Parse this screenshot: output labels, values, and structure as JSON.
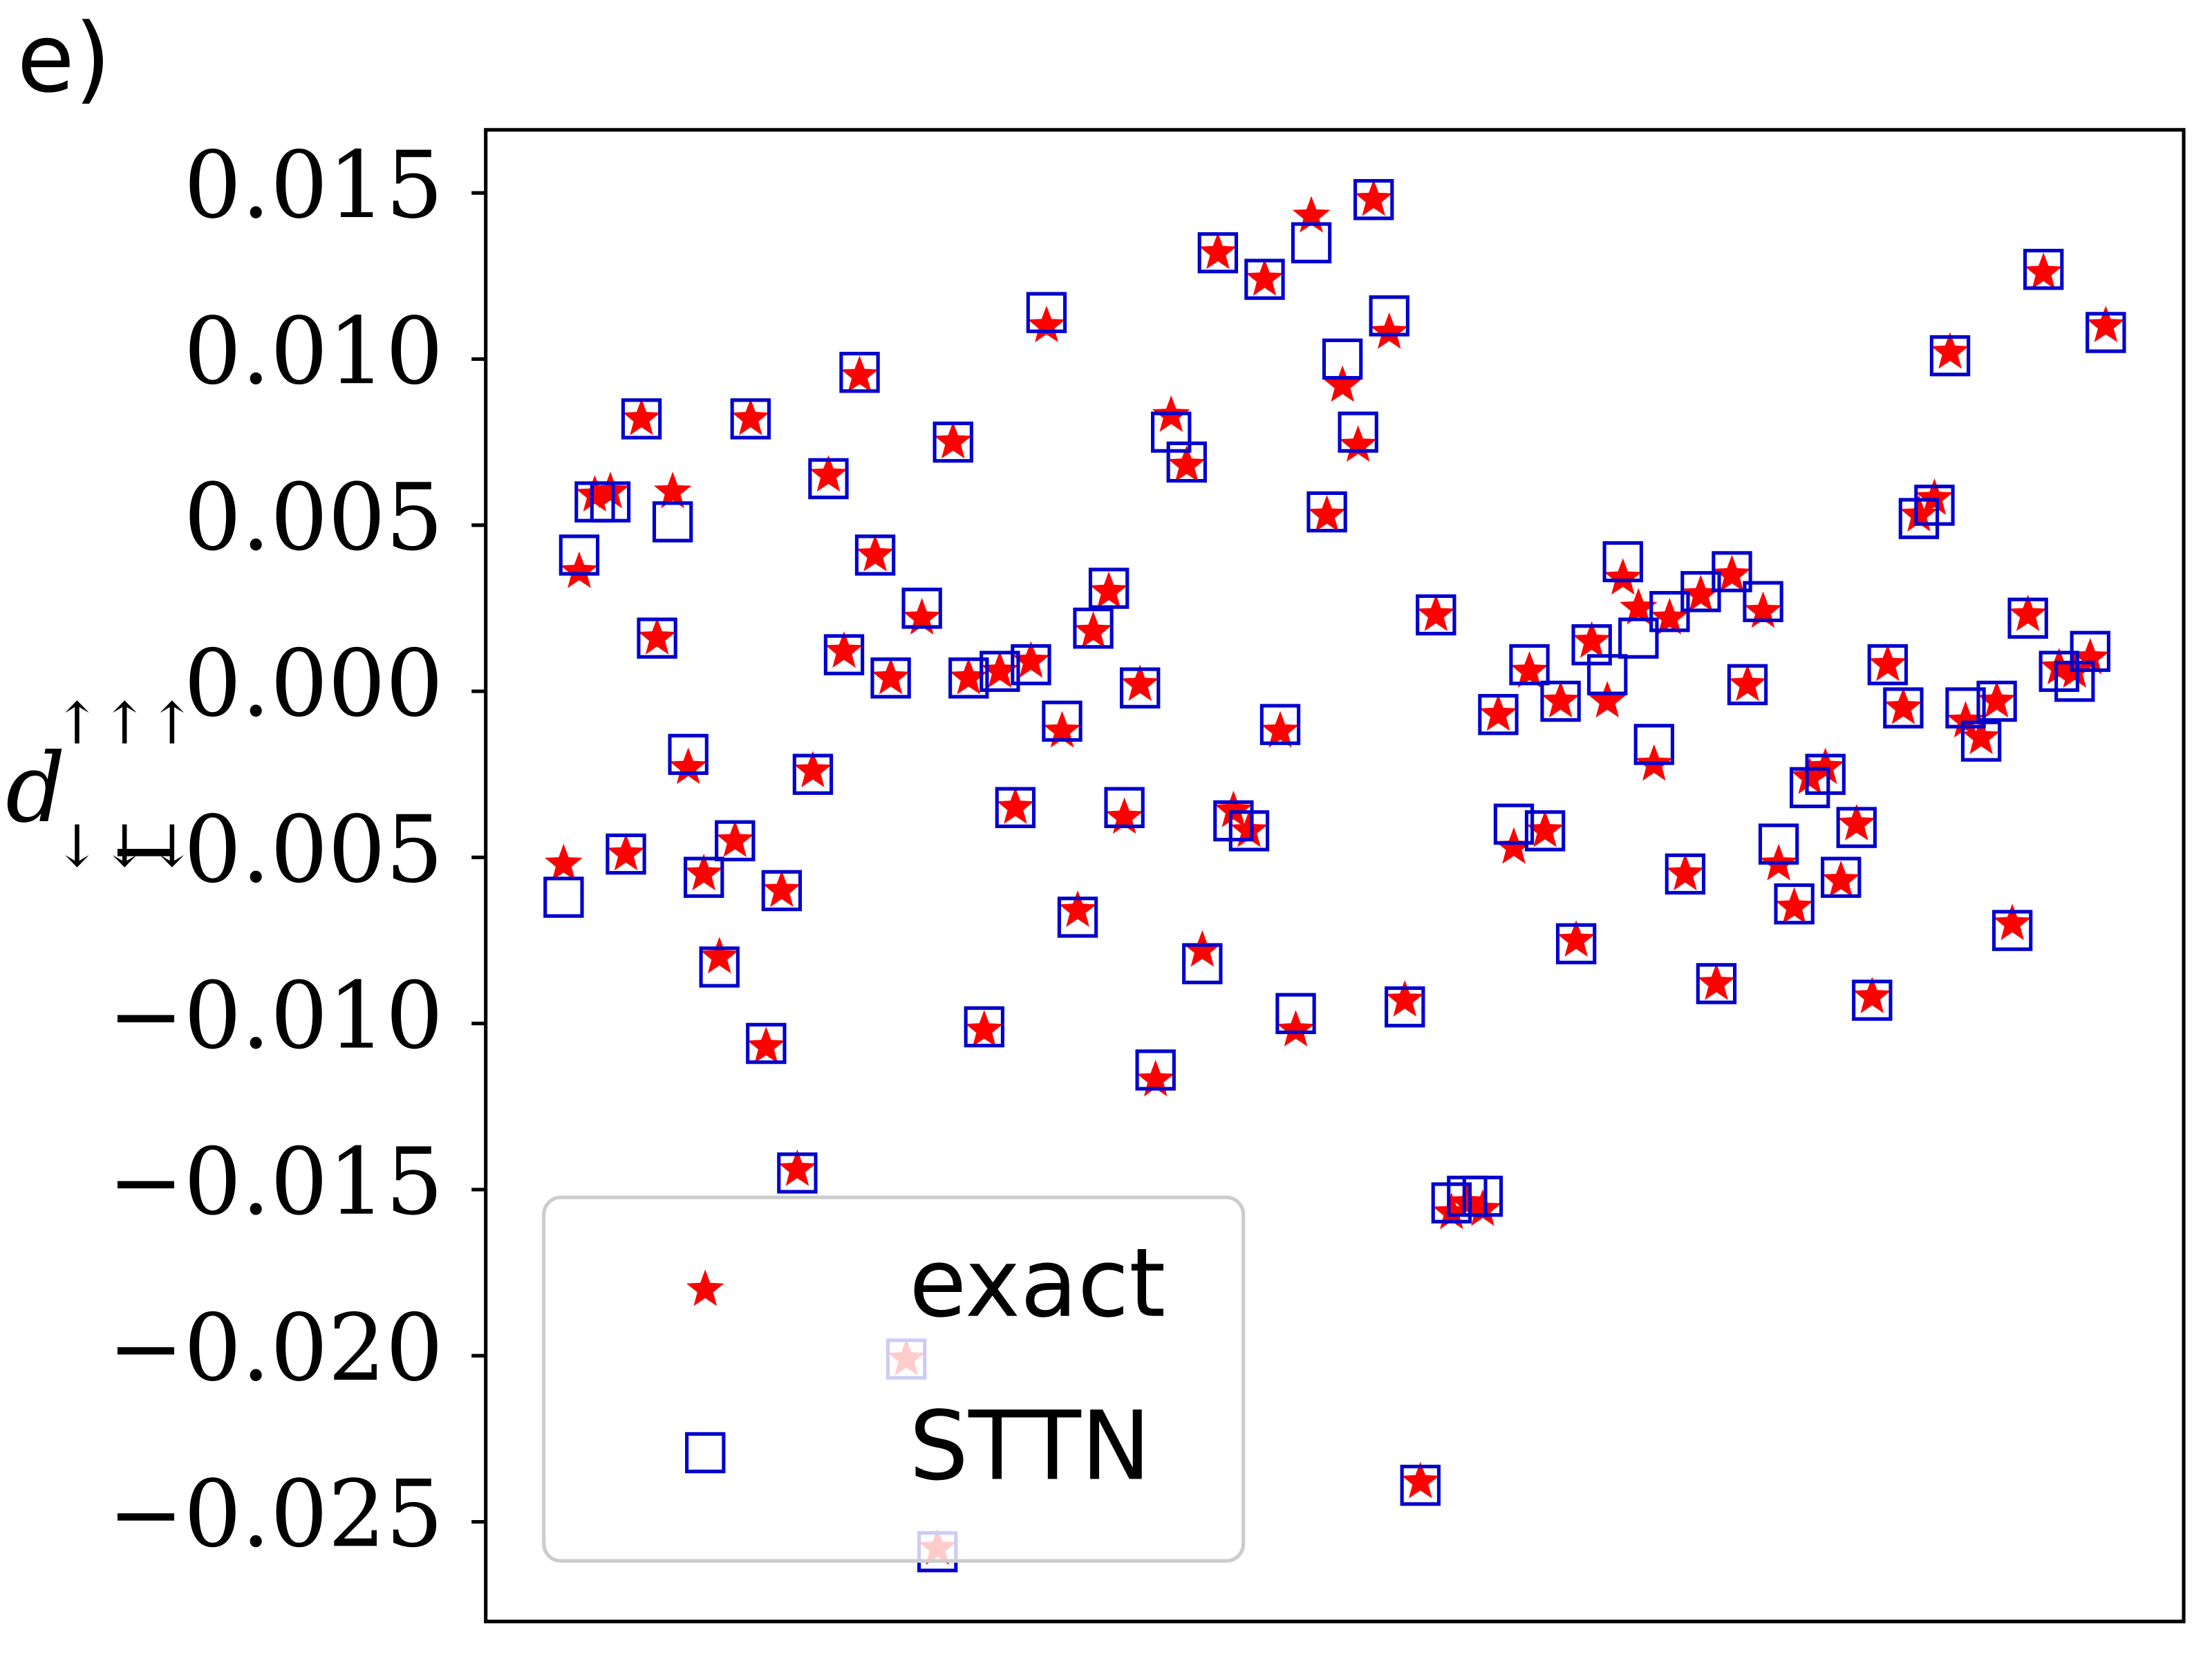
{
  "chart_data": {
    "type": "scatter",
    "panel_label": "e)",
    "ylabel": {
      "base": "d",
      "sup": "↑↑↑",
      "sub": "↓↓↓"
    },
    "xlim": [
      0,
      109
    ],
    "ylim": [
      -0.028,
      0.0169
    ],
    "yticks": [
      {
        "value": -0.025,
        "label": "−0.025"
      },
      {
        "value": -0.02,
        "label": "−0.020"
      },
      {
        "value": -0.015,
        "label": "−0.015"
      },
      {
        "value": -0.01,
        "label": "−0.010"
      },
      {
        "value": -0.005,
        "label": "−0.005"
      },
      {
        "value": 0,
        "label": "0.000"
      },
      0.005,
      {
        "value": 0.01,
        "label": "0.010"
      },
      0.015
    ],
    "grid": false,
    "legend": "lower left",
    "x": [
      5,
      6,
      7,
      8,
      9,
      10,
      11,
      12,
      13,
      14,
      15,
      16,
      17,
      18,
      19,
      20,
      21,
      22,
      23,
      24,
      25,
      26,
      27,
      28,
      29,
      30,
      31,
      32,
      33,
      34,
      35,
      36,
      37,
      38,
      39,
      40,
      41,
      42,
      43,
      44,
      45,
      46,
      47,
      48,
      49,
      50,
      51,
      52,
      53,
      54,
      55,
      56,
      57,
      58,
      59,
      60,
      61,
      62,
      63,
      64,
      65,
      66,
      67,
      68,
      69,
      70,
      71,
      72,
      73,
      74,
      75,
      76,
      77,
      78,
      79,
      80,
      81,
      82,
      83,
      84,
      85,
      86,
      87,
      88,
      89,
      90,
      91,
      92,
      93,
      94,
      95,
      96,
      97,
      98,
      99,
      100,
      101,
      102,
      103,
      104
    ],
    "series": [
      {
        "name": "exact",
        "color": "#ff0000",
        "marker": "star",
        "values": [
          -0.0052,
          0.0036,
          0.0059,
          0.006,
          -0.0049,
          0.0082,
          0.0016,
          0.006,
          -0.0023,
          -0.0055,
          -0.008,
          -0.0045,
          0.0082,
          -0.0107,
          -0.006,
          -0.0144,
          -0.0024,
          0.0065,
          0.0012,
          0.0095,
          0.0041,
          0.0004,
          -0.0201,
          0.0022,
          -0.0258,
          0.0075,
          0.0004,
          -0.0102,
          0.0006,
          -0.0035,
          0.0009,
          0.011,
          -0.0012,
          -0.0066,
          0.0018,
          0.003,
          -0.0038,
          0.0002,
          -0.0117,
          0.0083,
          0.0068,
          -0.0078,
          0.0132,
          -0.0036,
          -0.0042,
          0.0124,
          -0.0012,
          -0.0102,
          0.0143,
          0.0053,
          0.0092,
          0.0074,
          0.0148,
          0.0108,
          -0.0093,
          -0.0238,
          0.0023,
          -0.0157,
          -0.0154,
          -0.0156,
          -0.0007,
          -0.0047,
          0.0006,
          -0.0042,
          -0.0003,
          -0.0075,
          0.0015,
          -0.0003,
          0.0034,
          0.0025,
          -0.0022,
          0.0022,
          -0.0055,
          0.0029,
          -0.0088,
          0.0035,
          0.0002,
          0.0024,
          -0.0052,
          -0.0065,
          -0.0026,
          -0.0023,
          -0.0057,
          -0.004,
          -0.0092,
          0.0008,
          -0.0005,
          0.0053,
          0.0058,
          0.0102,
          -0.0009,
          -0.0014,
          -0.0003,
          -0.007,
          0.0023,
          0.0126,
          0.0007,
          0.0006,
          0.001,
          0.011
        ]
      },
      {
        "name": "STTN",
        "color": "#0000cc",
        "marker": "square",
        "values": [
          -0.0062,
          0.0041,
          0.0057,
          0.0057,
          -0.0049,
          0.0082,
          0.0016,
          0.0051,
          -0.0019,
          -0.0056,
          -0.0083,
          -0.0045,
          0.0082,
          -0.0106,
          -0.006,
          -0.0145,
          -0.0025,
          0.0064,
          0.0011,
          0.0096,
          0.0041,
          0.0004,
          -0.0201,
          0.0025,
          -0.0259,
          0.0075,
          0.0004,
          -0.0101,
          0.0006,
          -0.0035,
          0.0008,
          0.0114,
          -0.0009,
          -0.0068,
          0.0019,
          0.0031,
          -0.0035,
          0.0001,
          -0.0114,
          0.0078,
          0.0069,
          -0.0082,
          0.0132,
          -0.0039,
          -0.0042,
          0.0124,
          -0.001,
          -0.0097,
          0.0135,
          0.0054,
          0.01,
          0.0078,
          0.0148,
          0.0113,
          -0.0095,
          -0.0239,
          0.0023,
          -0.0154,
          -0.0152,
          -0.0152,
          -0.0007,
          -0.004,
          0.0008,
          -0.0042,
          -0.0003,
          -0.0076,
          0.0014,
          0.0005,
          0.0039,
          0.0016,
          -0.0016,
          0.0024,
          -0.0055,
          0.003,
          -0.0088,
          0.0036,
          0.0002,
          0.0027,
          -0.0046,
          -0.0064,
          -0.0029,
          -0.0025,
          -0.0056,
          -0.0041,
          -0.0093,
          0.0008,
          -0.0005,
          0.0052,
          0.0056,
          0.0101,
          -0.0005,
          -0.0015,
          -0.0003,
          -0.0072,
          0.0022,
          0.0127,
          0.0006,
          0.0003,
          0.0012,
          0.0108
        ]
      }
    ]
  }
}
